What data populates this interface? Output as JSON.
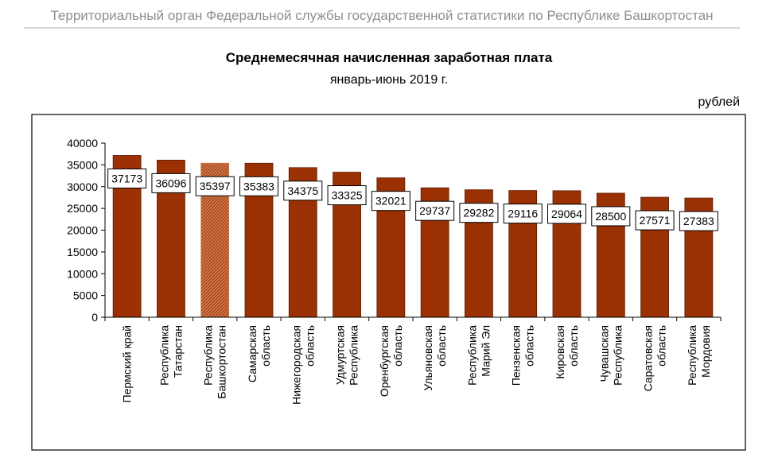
{
  "header": {
    "organization": "Территориальный орган Федеральной службы государственной статистики по Республике Башкортостан"
  },
  "colors": {
    "bar": "#9b3003",
    "bar_highlight": "#d2794a",
    "bar_outline": "#5a1d02"
  },
  "chart_data": {
    "type": "bar",
    "title": "Среднемесячная начисленная заработная плата",
    "subtitle": "январь-июнь 2019 г.",
    "unit": "рублей",
    "xlabel": "",
    "ylabel": "",
    "ylim": [
      0,
      40000
    ],
    "yticks": [
      0,
      5000,
      10000,
      15000,
      20000,
      25000,
      30000,
      35000,
      40000
    ],
    "grid": false,
    "legend": "none",
    "highlight_index": 2,
    "categories": [
      [
        "Пермский край"
      ],
      [
        "Республика",
        "Татарстан"
      ],
      [
        "Республика",
        "Башкортостан"
      ],
      [
        "Самарская",
        "область"
      ],
      [
        "Нижегородская",
        "область"
      ],
      [
        "Удмуртская",
        "Республика"
      ],
      [
        "Оренбургская",
        "область"
      ],
      [
        "Ульяновская",
        "область"
      ],
      [
        "Республика",
        "Марий Эл"
      ],
      [
        "Пензенская",
        "область"
      ],
      [
        "Кировская",
        "область"
      ],
      [
        "Чувашская",
        "Республика"
      ],
      [
        "Саратовская",
        "область"
      ],
      [
        "Республика",
        "Мордовия"
      ]
    ],
    "values": [
      37173,
      36096,
      35397,
      35383,
      34375,
      33325,
      32021,
      29737,
      29282,
      29116,
      29064,
      28500,
      27571,
      27383
    ]
  }
}
